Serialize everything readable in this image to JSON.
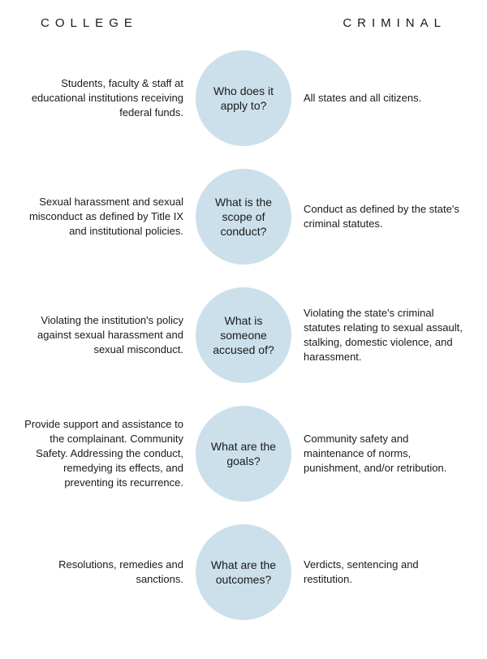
{
  "headers": {
    "left": "COLLEGE",
    "right": "CRIMINAL"
  },
  "circle_color": "#cbe0eb",
  "background_color": "#ffffff",
  "text_color": "#1a1a1a",
  "circle_diameter": 118,
  "font_size_body": 13,
  "font_size_circle": 14,
  "font_size_header": 15,
  "header_letter_spacing": 7,
  "rows": [
    {
      "left": "Students, faculty & staff at educational institutions receiving federal funds.",
      "center": "Who does it apply to?",
      "right": "All states and all citizens."
    },
    {
      "left": "Sexual harassment and sexual misconduct as defined by Title IX and institutional policies.",
      "center": "What is the scope of conduct?",
      "right": "Conduct as defined by the state's criminal statutes."
    },
    {
      "left": "Violating the institution's policy against sexual harassment and sexual misconduct.",
      "center": "What is someone accused of?",
      "right": "Violating the state's criminal statutes relating to sexual assault, stalking, domestic violence, and harassment."
    },
    {
      "left": "Provide support and assistance to the complainant. Community Safety. Addressing the conduct, remedying its effects, and preventing its recurrence.",
      "center": "What are the goals?",
      "right": "Community safety and maintenance of norms, punishment, and/or retribution."
    },
    {
      "left": "Resolutions, remedies and sanctions.",
      "center": "What are the outcomes?",
      "right": "Verdicts, sentencing and restitution."
    }
  ]
}
